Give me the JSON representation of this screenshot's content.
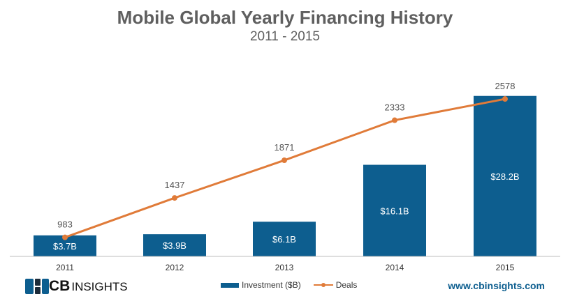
{
  "chart_data": {
    "type": "bar+line",
    "title": "Mobile Global Yearly Financing History",
    "subtitle": "2011 - 2015",
    "categories": [
      "2011",
      "2012",
      "2013",
      "2014",
      "2015"
    ],
    "series": [
      {
        "name": "Investment ($B)",
        "type": "bar",
        "values": [
          3.7,
          3.9,
          6.1,
          16.1,
          28.2
        ],
        "labels": [
          "$3.7B",
          "$3.9B",
          "$6.1B",
          "$16.1B",
          "$28.2B"
        ],
        "color": "#0d5e8f"
      },
      {
        "name": "Deals",
        "type": "line",
        "values": [
          983,
          1437,
          1871,
          2333,
          2578
        ],
        "labels": [
          "983",
          "1437",
          "1871",
          "2333",
          "2578"
        ],
        "color": "#e07b39"
      }
    ],
    "bar_axis_range": [
      0,
      30
    ],
    "line_axis_range": [
      0,
      3200
    ],
    "grid": false,
    "legend_position": "bottom-center"
  },
  "branding": {
    "logo_cb": "CB",
    "logo_insights": "INSIGHTS",
    "website": "www.cbinsights.com"
  }
}
